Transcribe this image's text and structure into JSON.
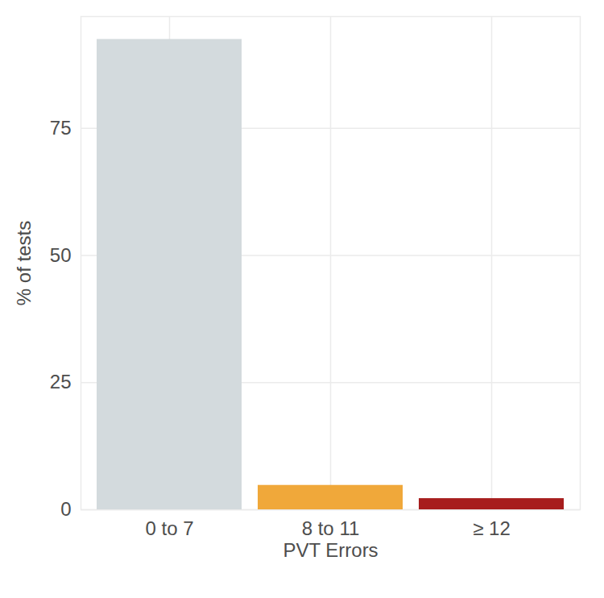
{
  "chart_data": {
    "type": "bar",
    "xlabel": "PVT Errors",
    "ylabel": "% of tests",
    "categories": [
      "0 to 7",
      "8 to 11",
      "≥ 12"
    ],
    "values": [
      92.5,
      4.8,
      2.2
    ],
    "colors": [
      "#d3dadd",
      "#f0a83a",
      "#a71d1d"
    ],
    "ylim": [
      0,
      97
    ],
    "yticks": [
      0,
      25,
      50,
      75
    ],
    "grid": true
  }
}
